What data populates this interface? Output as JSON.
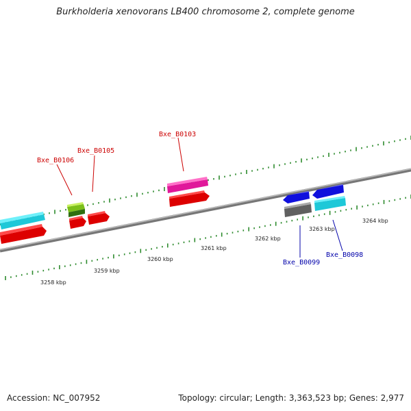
{
  "title": "Burkholderia xenovorans LB400 chromosome 2, complete genome",
  "footer": {
    "accession": "Accession: NC_007952",
    "summary": "Topology: circular; Length: 3,363,523 bp; Genes: 2,977"
  },
  "colors": {
    "forward_label": "#cc0000",
    "reverse_label": "#0000aa",
    "tick": "#2e8b2e",
    "backbone": "#8a8a8a"
  },
  "ticks": [
    "3258 kbp",
    "3259 kbp",
    "3260 kbp",
    "3261 kbp",
    "3262 kbp",
    "3263 kbp",
    "3264 kbp"
  ],
  "gene_labels": {
    "b0106": "Bxe_B0106",
    "b0105": "Bxe_B0105",
    "b0103": "Bxe_B0103",
    "b0099": "Bxe_B0099",
    "b0098": "Bxe_B0098"
  }
}
